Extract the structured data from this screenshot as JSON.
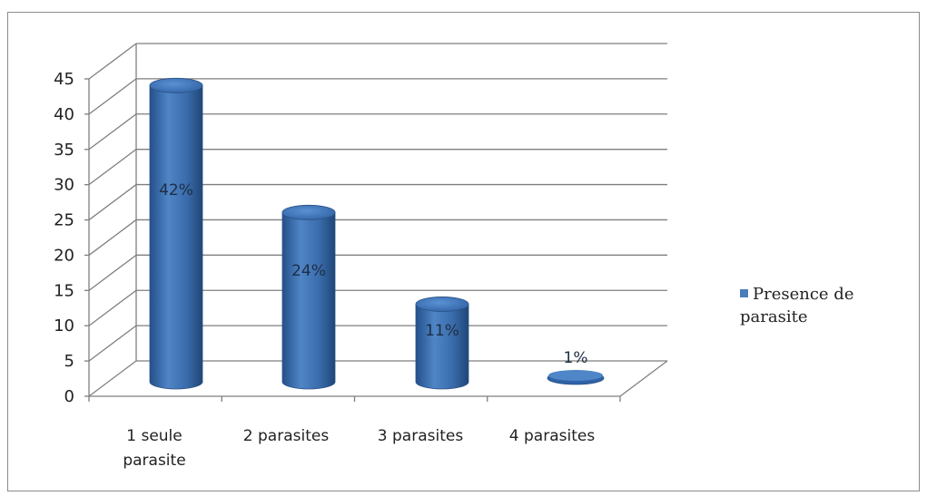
{
  "chart_data": {
    "type": "bar",
    "style": "3d-cylinder",
    "categories": [
      "1 seule parasite",
      "2 parasites",
      "3 parasites",
      "4 parasites"
    ],
    "series": [
      {
        "name": "Presence de parasite",
        "values": [
          42,
          24,
          11,
          1
        ],
        "data_labels": [
          "42%",
          "24%",
          "11%",
          "1%"
        ],
        "color": "#4a7ebb"
      }
    ],
    "ylim": [
      0,
      45
    ],
    "yticks": [
      0,
      5,
      10,
      15,
      20,
      25,
      30,
      35,
      40,
      45
    ],
    "grid": true,
    "legend": "right",
    "title": "",
    "xlabel": "",
    "ylabel": ""
  }
}
